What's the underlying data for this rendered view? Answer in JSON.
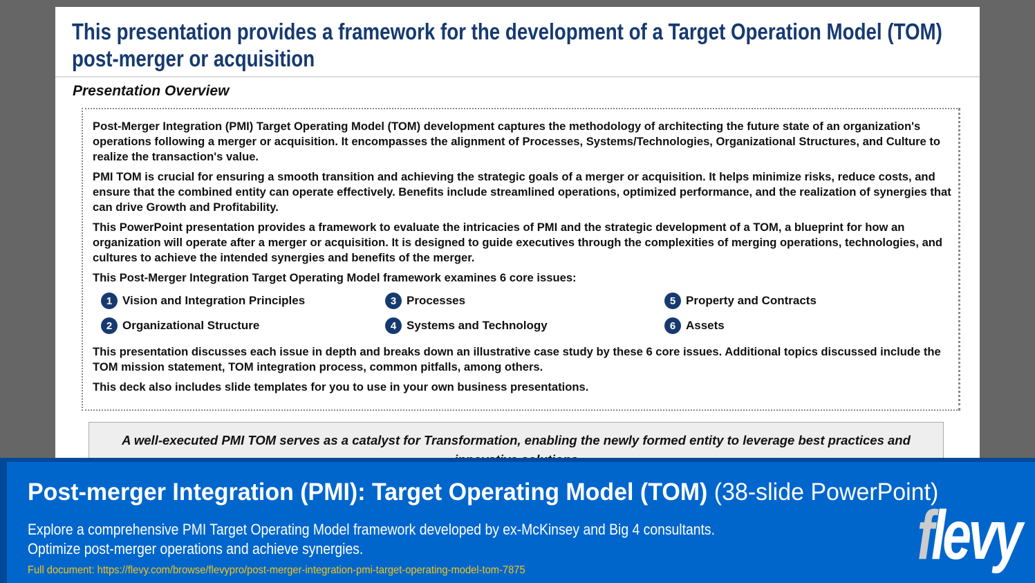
{
  "slide": {
    "title_line1": "This presentation provides a framework for the development of a Target Operation Model (TOM)",
    "title_line2": "post-merger or acquisition",
    "section": "Presentation Overview",
    "paragraphs": [
      "Post-Merger Integration (PMI) Target Operating Model (TOM) development captures the methodology of architecting the future state of an organization's operations following a merger or acquisition. It encompasses the alignment of Processes, Systems/Technologies, Organizational Structures, and Culture to realize the transaction's value.",
      "PMI TOM is crucial for ensuring a smooth transition and achieving the strategic goals of a merger or acquisition. It helps minimize risks, reduce costs, and ensure that the combined entity can operate effectively. Benefits include streamlined operations, optimized performance, and the realization of synergies that can drive Growth and Profitability.",
      "This PowerPoint presentation provides a framework to evaluate the intricacies of PMI and the strategic development of a TOM, a blueprint for how an organization will operate after a merger or acquisition. It is designed to guide executives through the complexities of merging operations, technologies, and cultures to achieve the intended synergies and benefits of the merger.",
      "This Post-Merger Integration Target Operating Model framework examines 6 core issues:",
      "This presentation discusses each issue in depth and breaks down an illustrative case study by these 6 core issues.  Additional topics discussed include the TOM mission statement, TOM integration process, common pitfalls, among others.",
      "This deck also includes slide templates for you to use in your own business presentations."
    ],
    "issues": [
      {
        "n": "1",
        "label": "Vision and Integration Principles"
      },
      {
        "n": "2",
        "label": "Organizational Structure"
      },
      {
        "n": "3",
        "label": "Processes"
      },
      {
        "n": "4",
        "label": "Systems and Technology"
      },
      {
        "n": "5",
        "label": "Property and Contracts"
      },
      {
        "n": "6",
        "label": "Assets"
      }
    ],
    "callout": "A well-executed PMI TOM serves as a catalyst for Transformation, enabling the newly formed entity to leverage best practices and innovative solutions"
  },
  "banner": {
    "title": "Post-merger Integration (PMI): Target Operating Model (TOM)",
    "title_suffix": "(38-slide PowerPoint)",
    "desc_line1": "Explore a comprehensive PMI Target Operating Model framework developed by ex-McKinsey and Big 4 consultants.",
    "desc_line2": "Optimize post-merger operations and achieve synergies.",
    "link": "Full document: https://flevy.com/browse/flevypro/post-merger-integration-pmi-target-operating-model-tom-7875",
    "logo": "flevy"
  },
  "colors": {
    "navy": "#163a70",
    "banner": "#0066cc",
    "link": "#f5c518"
  }
}
